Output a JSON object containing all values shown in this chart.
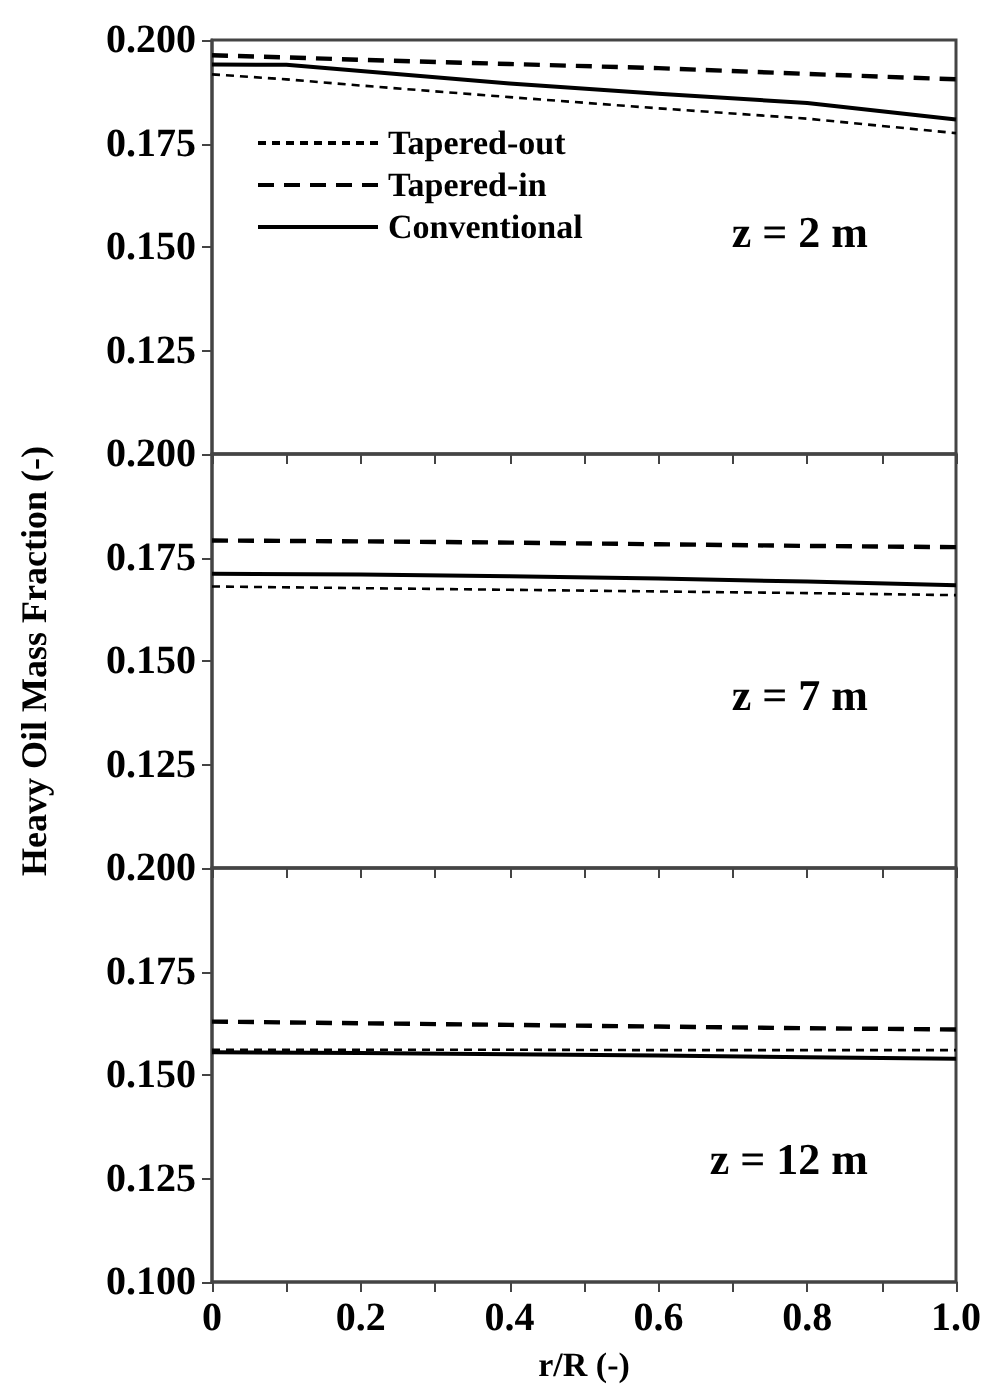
{
  "chart_data": [
    {
      "type": "line",
      "x": [
        0,
        0.1,
        0.2,
        0.4,
        0.6,
        0.8,
        1.0
      ],
      "xlim": [
        0,
        1.0
      ],
      "xticks": [
        {
          "value": 0,
          "label": null
        },
        {
          "value": 0.1,
          "label": null
        },
        {
          "value": 0.2,
          "label": null
        },
        {
          "value": 0.3,
          "label": null
        },
        {
          "value": 0.4,
          "label": null
        },
        {
          "value": 0.5,
          "label": null
        },
        {
          "value": 0.6,
          "label": null
        },
        {
          "value": 0.7,
          "label": null
        },
        {
          "value": 0.8,
          "label": null
        },
        {
          "value": 0.9,
          "label": null
        },
        {
          "value": 1.0,
          "label": null
        }
      ],
      "ylim": [
        0.1,
        0.2
      ],
      "yticks": [
        {
          "value": 0.1,
          "label": null
        },
        {
          "value": 0.125,
          "label": "0.125"
        },
        {
          "value": 0.15,
          "label": "0.150"
        },
        {
          "value": 0.175,
          "label": "0.175"
        },
        {
          "value": 0.2,
          "label": "0.200"
        }
      ],
      "tick_labels": "y",
      "legend": "top left",
      "grid": false,
      "marker": "none",
      "annotations": [
        "z = 2 m"
      ],
      "series": [
        {
          "name": "Tapered-out",
          "color": "#000000",
          "line_style": "dashed",
          "values": [
            0.1917,
            0.1905,
            0.189,
            0.1862,
            0.1835,
            0.181,
            0.1775
          ]
        },
        {
          "name": "Tapered-in",
          "color": "#000000",
          "line_style": "dashed",
          "values": [
            0.1963,
            0.1958,
            0.1952,
            0.1942,
            0.1932,
            0.1918,
            0.1905
          ]
        },
        {
          "name": "Conventional",
          "color": "#000000",
          "line_style": "solid",
          "values": [
            0.1941,
            0.194,
            0.1925,
            0.1895,
            0.187,
            0.1848,
            0.1808
          ]
        }
      ]
    },
    {
      "type": "line",
      "x": [
        0,
        0.2,
        0.4,
        0.6,
        0.8,
        1.0
      ],
      "xlim": [
        0,
        1.0
      ],
      "xticks": [
        {
          "value": 0,
          "label": null
        },
        {
          "value": 0.1,
          "label": null
        },
        {
          "value": 0.2,
          "label": null
        },
        {
          "value": 0.3,
          "label": null
        },
        {
          "value": 0.4,
          "label": null
        },
        {
          "value": 0.5,
          "label": null
        },
        {
          "value": 0.6,
          "label": null
        },
        {
          "value": 0.7,
          "label": null
        },
        {
          "value": 0.8,
          "label": null
        },
        {
          "value": 0.9,
          "label": null
        },
        {
          "value": 1.0,
          "label": null
        }
      ],
      "ylim": [
        0.1,
        0.2
      ],
      "yticks": [
        {
          "value": 0.1,
          "label": null
        },
        {
          "value": 0.125,
          "label": "0.125"
        },
        {
          "value": 0.15,
          "label": "0.150"
        },
        {
          "value": 0.175,
          "label": "0.175"
        },
        {
          "value": 0.2,
          "label": "0.200"
        }
      ],
      "tick_labels": "y",
      "grid": false,
      "marker": "none",
      "ylabel": "Heavy Oil Mass Fraction (-)",
      "annotations": [
        "z = 7 m"
      ],
      "series": [
        {
          "color": "#000000",
          "line_style": "dashed",
          "values": [
            0.168,
            0.1676,
            0.1672,
            0.1668,
            0.1664,
            0.1659
          ]
        },
        {
          "color": "#000000",
          "line_style": "dashed",
          "values": [
            0.1791,
            0.1789,
            0.1786,
            0.1782,
            0.1778,
            0.1775
          ]
        },
        {
          "color": "#000000",
          "line_style": "solid",
          "values": [
            0.1711,
            0.1709,
            0.1705,
            0.1699,
            0.1692,
            0.1683
          ]
        }
      ]
    },
    {
      "type": "line",
      "x": [
        0,
        0.2,
        0.4,
        0.6,
        0.8,
        1.0
      ],
      "xlim": [
        0,
        1.0
      ],
      "xticks": [
        0,
        {
          "value": 0.1,
          "label": null
        },
        0.2,
        {
          "value": 0.3,
          "label": null
        },
        0.4,
        {
          "value": 0.5,
          "label": null
        },
        0.6,
        {
          "value": 0.7,
          "label": null
        },
        0.8,
        {
          "value": 0.9,
          "label": null
        },
        {
          "value": 1.0,
          "label": "1.0"
        }
      ],
      "ylim": [
        0.1,
        0.2
      ],
      "yticks": [
        {
          "value": 0.1,
          "label": "0.100"
        },
        {
          "value": 0.125,
          "label": "0.125"
        },
        {
          "value": 0.15,
          "label": "0.150"
        },
        {
          "value": 0.175,
          "label": "0.175"
        },
        {
          "value": 0.2,
          "label": "0.200"
        }
      ],
      "grid": false,
      "marker": "none",
      "xlabel": "r/R (-)",
      "annotations": [
        "z = 12 m"
      ],
      "series": [
        {
          "color": "#000000",
          "line_style": "dashed",
          "values": [
            0.1561,
            0.1561,
            0.1561,
            0.156,
            0.156,
            0.156
          ]
        },
        {
          "color": "#000000",
          "line_style": "dashed",
          "values": [
            0.1629,
            0.1625,
            0.1621,
            0.1617,
            0.1613,
            0.161
          ]
        },
        {
          "color": "#000000",
          "line_style": "solid",
          "values": [
            0.1555,
            0.1553,
            0.155,
            0.1547,
            0.1543,
            0.1539
          ]
        }
      ]
    }
  ]
}
